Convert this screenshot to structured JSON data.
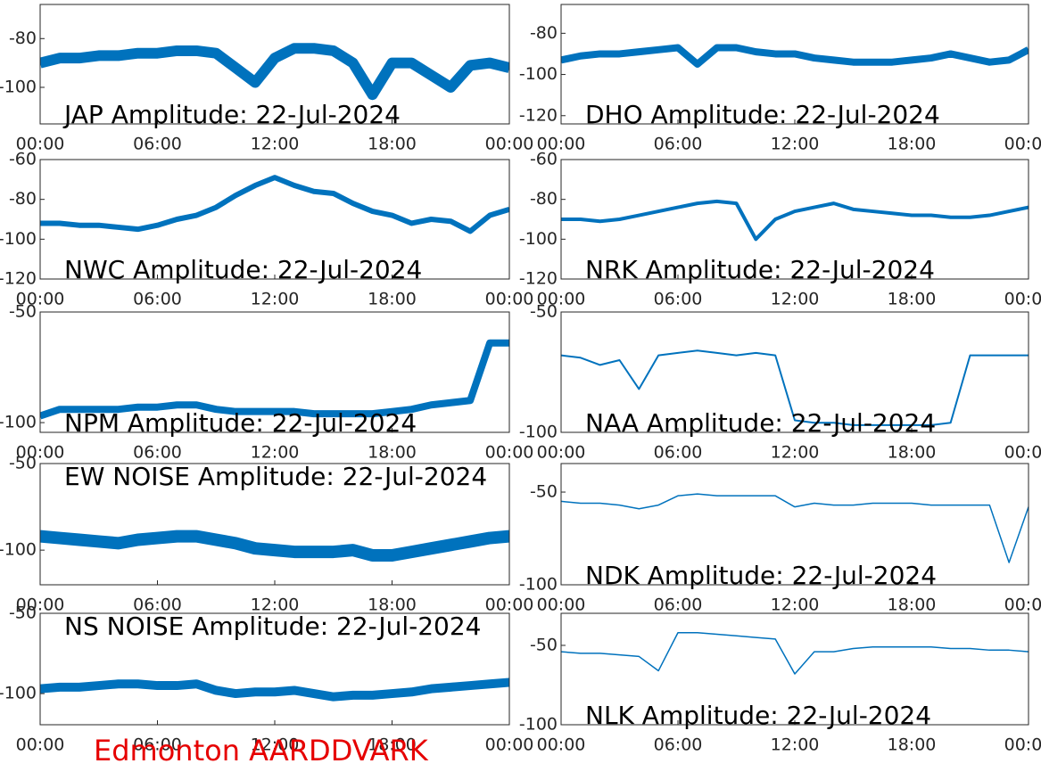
{
  "chart_data": [
    {
      "type": "line",
      "title": "JAP Amplitude: 22-Jul-2024",
      "color": "#0072bd",
      "xlim": [
        0,
        24
      ],
      "ylim": [
        -115,
        -66
      ],
      "yticks": [
        -80,
        -100
      ],
      "xticks": [
        {
          "value": 0,
          "label": "00:00"
        },
        {
          "value": 6,
          "label": "06:00"
        },
        {
          "value": 12,
          "label": "12:00"
        },
        {
          "value": 18,
          "label": "18:00"
        },
        {
          "value": 24,
          "label": "00:00"
        }
      ],
      "x": [
        0,
        1,
        2,
        3,
        4,
        5,
        6,
        7,
        8,
        9,
        10,
        11,
        12,
        13,
        14,
        15,
        16,
        17,
        18,
        19,
        20,
        21,
        22,
        23,
        24
      ],
      "values": [
        -90,
        -88,
        -88,
        -87,
        -87,
        -86,
        -86,
        -85,
        -85,
        -86,
        -92,
        -98,
        -88,
        -84,
        -84,
        -85,
        -90,
        -103,
        -90,
        -90,
        -95,
        -100,
        -91,
        -90,
        -92
      ]
    },
    {
      "type": "line",
      "title": "DHO Amplitude: 22-Jul-2024",
      "color": "#0072bd",
      "xlim": [
        0,
        24
      ],
      "ylim": [
        -124,
        -66
      ],
      "yticks": [
        -80,
        -100,
        -120
      ],
      "xticks": [
        {
          "value": 0,
          "label": "00:00"
        },
        {
          "value": 6,
          "label": "06:00"
        },
        {
          "value": 12,
          "label": "12:00"
        },
        {
          "value": 18,
          "label": "18:00"
        },
        {
          "value": 24,
          "label": "00:00"
        }
      ],
      "x": [
        0,
        1,
        2,
        3,
        4,
        5,
        6,
        7,
        8,
        9,
        10,
        11,
        12,
        13,
        14,
        15,
        16,
        17,
        18,
        19,
        20,
        21,
        22,
        23,
        24
      ],
      "values": [
        -93,
        -91,
        -90,
        -90,
        -89,
        -88,
        -87,
        -95,
        -87,
        -87,
        -89,
        -90,
        -90,
        -92,
        -93,
        -94,
        -94,
        -94,
        -93,
        -92,
        -90,
        -92,
        -94,
        -93,
        -88
      ]
    },
    {
      "type": "line",
      "title": "NWC Amplitude: 22-Jul-2024",
      "color": "#0072bd",
      "xlim": [
        0,
        24
      ],
      "ylim": [
        -120,
        -60
      ],
      "yticks": [
        -60,
        -80,
        -100,
        -120
      ],
      "xticks": [
        {
          "value": 0,
          "label": "00:00"
        },
        {
          "value": 6,
          "label": "06:00"
        },
        {
          "value": 12,
          "label": "12:00"
        },
        {
          "value": 18,
          "label": "18:00"
        },
        {
          "value": 24,
          "label": "00:00"
        }
      ],
      "x": [
        0,
        1,
        2,
        3,
        4,
        5,
        6,
        7,
        8,
        9,
        10,
        11,
        12,
        13,
        14,
        15,
        16,
        17,
        18,
        19,
        20,
        21,
        22,
        23,
        24
      ],
      "values": [
        -92,
        -92,
        -93,
        -93,
        -94,
        -95,
        -93,
        -90,
        -88,
        -84,
        -78,
        -73,
        -69,
        -73,
        -76,
        -77,
        -82,
        -86,
        -88,
        -92,
        -90,
        -91,
        -96,
        -88,
        -85
      ]
    },
    {
      "type": "line",
      "title": "NRK Amplitude: 22-Jul-2024",
      "color": "#0072bd",
      "xlim": [
        0,
        24
      ],
      "ylim": [
        -120,
        -60
      ],
      "yticks": [
        -60,
        -80,
        -100,
        -120
      ],
      "xticks": [
        {
          "value": 0,
          "label": "00:00"
        },
        {
          "value": 6,
          "label": "06:00"
        },
        {
          "value": 12,
          "label": "12:00"
        },
        {
          "value": 18,
          "label": "18:00"
        },
        {
          "value": 24,
          "label": "00:00"
        }
      ],
      "x": [
        0,
        1,
        2,
        3,
        4,
        5,
        6,
        7,
        8,
        9,
        10,
        11,
        12,
        13,
        14,
        15,
        16,
        17,
        18,
        19,
        20,
        21,
        22,
        23,
        24
      ],
      "values": [
        -90,
        -90,
        -91,
        -90,
        -88,
        -86,
        -84,
        -82,
        -81,
        -82,
        -100,
        -90,
        -86,
        -84,
        -82,
        -85,
        -86,
        -87,
        -88,
        -88,
        -89,
        -89,
        -88,
        -86,
        -84
      ]
    },
    {
      "type": "line",
      "title": "NPM Amplitude: 22-Jul-2024",
      "color": "#0072bd",
      "xlim": [
        0,
        24
      ],
      "ylim": [
        -104.4,
        -50
      ],
      "yticks": [
        -50,
        -100
      ],
      "xticks": [
        {
          "value": 0,
          "label": "00:00"
        },
        {
          "value": 6,
          "label": "06:00"
        },
        {
          "value": 12,
          "label": "12:00"
        },
        {
          "value": 18,
          "label": "18:00"
        },
        {
          "value": 24,
          "label": "00:00"
        }
      ],
      "x": [
        0,
        1,
        2,
        3,
        4,
        5,
        6,
        7,
        8,
        9,
        10,
        11,
        12,
        13,
        14,
        15,
        16,
        17,
        18,
        19,
        20,
        21,
        22,
        23,
        24
      ],
      "values": [
        -97,
        -94,
        -94,
        -94,
        -94,
        -93,
        -93,
        -92,
        -92,
        -94,
        -95,
        -95,
        -95,
        -95,
        -96,
        -96,
        -96,
        -96,
        -95,
        -94,
        -92,
        -91,
        -90,
        -64,
        -64
      ]
    },
    {
      "type": "line",
      "title": "NAA Amplitude: 22-Jul-2024",
      "color": "#0072bd",
      "xlim": [
        0,
        24
      ],
      "ylim": [
        -100,
        -50
      ],
      "yticks": [
        -50,
        -100
      ],
      "xticks": [
        {
          "value": 0,
          "label": "00:00"
        },
        {
          "value": 6,
          "label": "06:00"
        },
        {
          "value": 12,
          "label": "12:00"
        },
        {
          "value": 18,
          "label": "18:00"
        },
        {
          "value": 24,
          "label": "00:00"
        }
      ],
      "x": [
        0,
        1,
        2,
        3,
        4,
        5,
        6,
        7,
        8,
        9,
        10,
        11,
        12,
        13,
        14,
        15,
        16,
        17,
        18,
        19,
        20,
        21,
        22,
        23,
        24
      ],
      "values": [
        -68,
        -69,
        -72,
        -70,
        -82,
        -68,
        -67,
        -66,
        -67,
        -68,
        -67,
        -68,
        -95,
        -96,
        -96,
        -97,
        -97,
        -97,
        -97,
        -97,
        -96,
        -68,
        -68,
        -68,
        -68
      ]
    },
    {
      "type": "line",
      "title": "EW NOISE Amplitude: 22-Jul-2024",
      "color": "#0072bd",
      "xlim": [
        0,
        24
      ],
      "ylim": [
        -120,
        -50
      ],
      "yticks": [
        -50,
        -100
      ],
      "xticks": [
        {
          "value": 0,
          "label": "00:00"
        },
        {
          "value": 6,
          "label": "06:00"
        },
        {
          "value": 12,
          "label": "12:00"
        },
        {
          "value": 18,
          "label": "18:00"
        },
        {
          "value": 24,
          "label": "00:00"
        }
      ],
      "x": [
        0,
        1,
        2,
        3,
        4,
        5,
        6,
        7,
        8,
        9,
        10,
        11,
        12,
        13,
        14,
        15,
        16,
        17,
        18,
        19,
        20,
        21,
        22,
        23,
        24
      ],
      "values": [
        -92,
        -93,
        -94,
        -95,
        -96,
        -94,
        -93,
        -92,
        -92,
        -94,
        -96,
        -99,
        -100,
        -101,
        -101,
        -101,
        -100,
        -103,
        -103,
        -101,
        -99,
        -97,
        -95,
        -93,
        -92
      ]
    },
    {
      "type": "line",
      "title": "NDK Amplitude: 22-Jul-2024",
      "color": "#0072bd",
      "xlim": [
        0,
        24
      ],
      "ylim": [
        -100,
        -34.6
      ],
      "yticks": [
        -50,
        -100
      ],
      "xticks": [
        {
          "value": 0,
          "label": "00:00"
        },
        {
          "value": 6,
          "label": "06:00"
        },
        {
          "value": 12,
          "label": "12:00"
        },
        {
          "value": 18,
          "label": "18:00"
        },
        {
          "value": 24,
          "label": "00:00"
        }
      ],
      "x": [
        0,
        1,
        2,
        3,
        4,
        5,
        6,
        7,
        8,
        9,
        10,
        11,
        12,
        13,
        14,
        15,
        16,
        17,
        18,
        19,
        20,
        21,
        22,
        23,
        24
      ],
      "values": [
        -55,
        -56,
        -56,
        -57,
        -59,
        -57,
        -52,
        -51,
        -52,
        -52,
        -52,
        -52,
        -58,
        -56,
        -57,
        -57,
        -56,
        -56,
        -56,
        -57,
        -57,
        -57,
        -57,
        -88,
        -58
      ]
    },
    {
      "type": "line",
      "title": "NS NOISE Amplitude: 22-Jul-2024",
      "color": "#0072bd",
      "xlim": [
        0,
        24
      ],
      "ylim": [
        -119.4,
        -50
      ],
      "yticks": [
        -50,
        -100
      ],
      "xticks": [
        {
          "value": 0,
          "label": "00:00"
        },
        {
          "value": 6,
          "label": "06:00"
        },
        {
          "value": 12,
          "label": "12:00"
        },
        {
          "value": 18,
          "label": "18:00"
        },
        {
          "value": 24,
          "label": "00:00"
        }
      ],
      "x": [
        0,
        1,
        2,
        3,
        4,
        5,
        6,
        7,
        8,
        9,
        10,
        11,
        12,
        13,
        14,
        15,
        16,
        17,
        18,
        19,
        20,
        21,
        22,
        23,
        24
      ],
      "values": [
        -97,
        -96,
        -96,
        -95,
        -94,
        -94,
        -95,
        -95,
        -94,
        -98,
        -100,
        -99,
        -99,
        -98,
        -100,
        -102,
        -101,
        -101,
        -100,
        -99,
        -97,
        -96,
        -95,
        -94,
        -93
      ]
    },
    {
      "type": "line",
      "title": "NLK Amplitude: 22-Jul-2024",
      "color": "#0072bd",
      "xlim": [
        0,
        24
      ],
      "ylim": [
        -100,
        -29.8
      ],
      "yticks": [
        -50,
        -100
      ],
      "xticks": [
        {
          "value": 0,
          "label": "00:00"
        },
        {
          "value": 6,
          "label": "06:00"
        },
        {
          "value": 12,
          "label": "12:00"
        },
        {
          "value": 18,
          "label": "18:00"
        },
        {
          "value": 24,
          "label": "00:00"
        }
      ],
      "x": [
        0,
        1,
        2,
        3,
        4,
        5,
        6,
        7,
        8,
        9,
        10,
        11,
        12,
        13,
        14,
        15,
        16,
        17,
        18,
        19,
        20,
        21,
        22,
        23,
        24
      ],
      "values": [
        -54,
        -55,
        -55,
        -56,
        -57,
        -66,
        -42,
        -42,
        -43,
        -44,
        -45,
        -46,
        -68,
        -54,
        -54,
        -52,
        -51,
        -51,
        -51,
        -51,
        -52,
        -52,
        -53,
        -53,
        -54
      ]
    }
  ],
  "footer": "Edmonton AARDDVARK"
}
